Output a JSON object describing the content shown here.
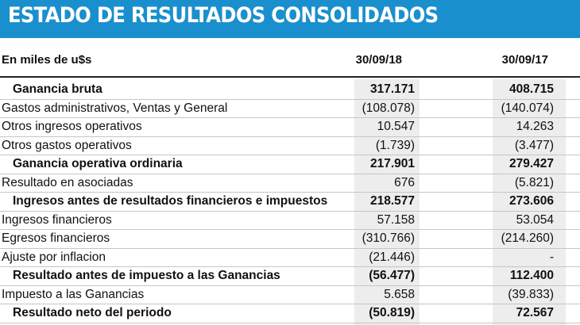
{
  "header": {
    "title": "ESTADO DE RESULTADOS CONSOLIDADOS"
  },
  "columns": {
    "label": "En miles de u$s",
    "period1": "30/09/18",
    "period2": "30/09/17"
  },
  "rows": [
    {
      "label": "Ganancia bruta",
      "v1": "317.171",
      "v2": "408.715",
      "bold": true
    },
    {
      "label": "Gastos administrativos, Ventas y General",
      "v1": "(108.078)",
      "v2": "(140.074)",
      "bold": false
    },
    {
      "label": "Otros ingresos operativos",
      "v1": "10.547",
      "v2": "14.263",
      "bold": false
    },
    {
      "label": "Otros gastos operativos",
      "v1": "(1.739)",
      "v2": "(3.477)",
      "bold": false
    },
    {
      "label": "Ganancia operativa ordinaria",
      "v1": "217.901",
      "v2": "279.427",
      "bold": true
    },
    {
      "label": "Resultado en asociadas",
      "v1": "676",
      "v2": "(5.821)",
      "bold": false
    },
    {
      "label": "Ingresos antes de resultados financieros e impuestos",
      "v1": "218.577",
      "v2": "273.606",
      "bold": true
    },
    {
      "label": "Ingresos financieros",
      "v1": "57.158",
      "v2": "53.054",
      "bold": false
    },
    {
      "label": "Egresos financieros",
      "v1": "(310.766)",
      "v2": "(214.260)",
      "bold": false
    },
    {
      "label": "Ajuste por inflacion",
      "v1": "(21.446)",
      "v2": "-",
      "bold": false
    },
    {
      "label": "Resultado antes de impuesto a las Ganancias",
      "v1": "(56.477)",
      "v2": "112.400",
      "bold": true
    },
    {
      "label": "Impuesto a las Ganancias",
      "v1": "5.658",
      "v2": "(39.833)",
      "bold": false
    },
    {
      "label": "Resultado neto del periodo",
      "v1": "(50.819)",
      "v2": "72.567",
      "bold": true
    }
  ]
}
